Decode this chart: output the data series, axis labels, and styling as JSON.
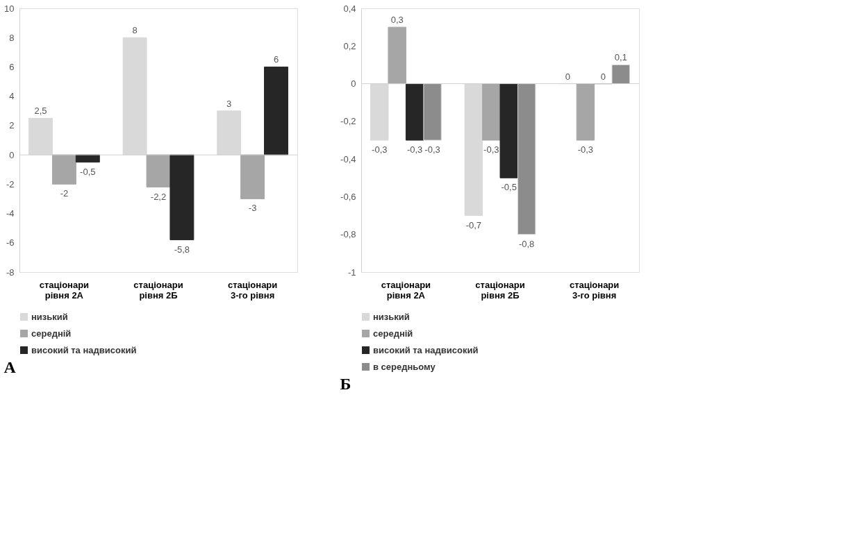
{
  "chart_data": [
    {
      "type": "bar",
      "categories": [
        "стаціонари рівня 2А",
        "стаціонари рівня 2Б",
        "стаціонари 3-го рівня"
      ],
      "series": [
        {
          "name": "низький",
          "color": "#d9d9d9",
          "values": [
            2.5,
            8,
            3
          ],
          "value_labels": [
            "2,5",
            "8",
            "3"
          ]
        },
        {
          "name": "середній",
          "color": "#a6a6a6",
          "values": [
            -2,
            -2.2,
            -3
          ],
          "value_labels": [
            "-2",
            "-2,2",
            "-3"
          ]
        },
        {
          "name": "високий та надвисокий",
          "color": "#262626",
          "values": [
            -0.5,
            -5.8,
            6
          ],
          "value_labels": [
            "-0,5",
            "-5,8",
            "6"
          ]
        }
      ],
      "ylim": [
        -8,
        10
      ],
      "yticks": [
        -8,
        -6,
        -4,
        -2,
        0,
        2,
        4,
        6,
        8,
        10
      ],
      "ref_lines": [
        {
          "axis": "y",
          "value": 0,
          "color": "#d0d0d0"
        }
      ],
      "legend": "bottom",
      "grid": false,
      "annotations": [
        "А"
      ]
    },
    {
      "type": "bar",
      "categories": [
        "стаціонари рівня 2А",
        "стаціонари рівня 2Б",
        "стаціонари 3-го рівня"
      ],
      "series": [
        {
          "name": "низький",
          "color": "#d9d9d9",
          "values": [
            -0.3,
            -0.7,
            0
          ],
          "value_labels": [
            "-0,3",
            "-0,7",
            "0"
          ]
        },
        {
          "name": "середній",
          "color": "#a6a6a6",
          "values": [
            0.3,
            -0.3,
            -0.3
          ],
          "value_labels": [
            "0,3",
            "-0,3",
            "-0,3"
          ]
        },
        {
          "name": "високий та надвисокий",
          "color": "#262626",
          "values": [
            -0.3,
            -0.5,
            0
          ],
          "value_labels": [
            "-0,3",
            "-0,5",
            "0"
          ]
        },
        {
          "name": "в середньому",
          "color": "#8c8c8c",
          "values": [
            -0.3,
            -0.8,
            0.1
          ],
          "value_labels": [
            "-0,3",
            "-0,8",
            "0,1"
          ]
        }
      ],
      "ylim": [
        -1,
        0.4
      ],
      "yticks": [
        {
          "value": -1,
          "label": "-1"
        },
        {
          "value": -0.8,
          "label": "-0,8"
        },
        {
          "value": -0.6,
          "label": "-0,6"
        },
        {
          "value": -0.4,
          "label": "-0,4"
        },
        {
          "value": -0.2,
          "label": "-0,2"
        },
        {
          "value": 0,
          "label": "0"
        },
        {
          "value": 0.2,
          "label": "0,2"
        },
        {
          "value": 0.4,
          "label": "0,4"
        }
      ],
      "ref_lines": [
        {
          "axis": "y",
          "value": 0,
          "color": "#d0d0d0"
        }
      ],
      "legend": "bottom",
      "grid": false,
      "annotations": [
        "Б"
      ]
    }
  ]
}
